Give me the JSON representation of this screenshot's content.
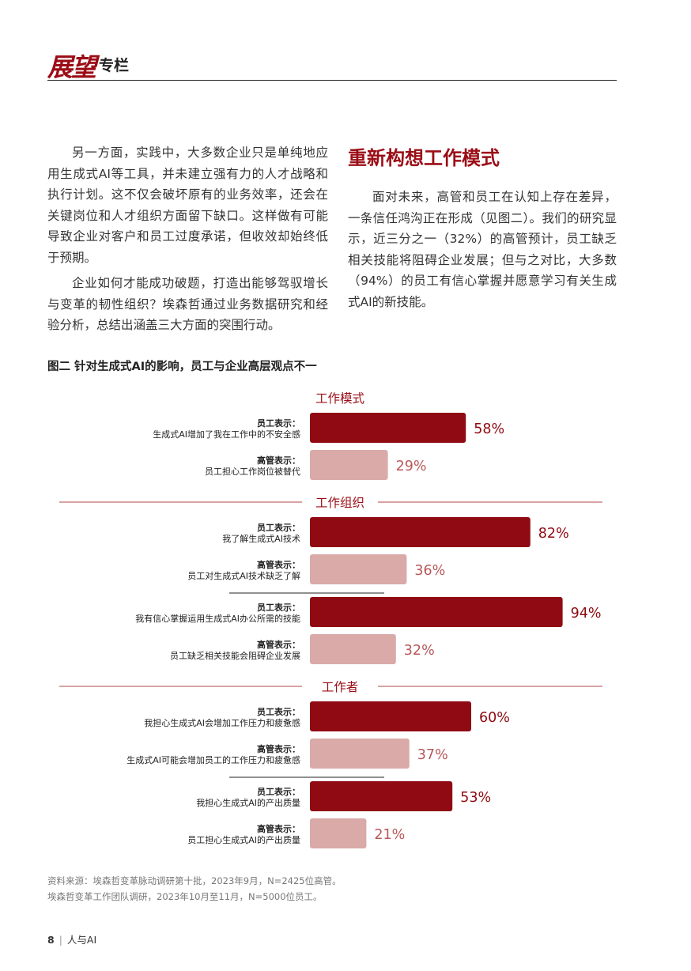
{
  "header": {
    "logo_text": "展望",
    "section": "专栏"
  },
  "left_column": {
    "paragraphs": [
      "另一方面，实践中，大多数企业只是单纯地应用生成式AI等工具，并未建立强有力的人才战略和执行计划。这不仅会破坏原有的业务效率，还会在关键岗位和人才组织方面留下缺口。这样做有可能导致企业对客户和员工过度承诺，但收效却始终低于预期。",
      "企业如何才能成功破题，打造出能够驾驭增长与变革的韧性组织？埃森哲通过业务数据研究和经验分析，总结出涵盖三大方面的突围行动。"
    ]
  },
  "right_column": {
    "heading": "重新构想工作模式",
    "paragraph": "面对未来，高管和员工在认知上存在差异，一条信任鸿沟正在形成（见图二）。我们的研究显示，近三分之一（32%）的高管预计，员工缺乏相关技能将阻碍企业发展；但与之对比，大多数（94%）的员工有信心掌握并愿意学习有关生成式AI的新技能。"
  },
  "figure": {
    "title": "图二  针对生成式AI的影响，员工与企业高层观点不一"
  },
  "chart_data": {
    "type": "bar",
    "orientation": "horizontal",
    "xlim": [
      0,
      100
    ],
    "unit": "%",
    "colors": {
      "employee": "#8f0a12",
      "executive": "#d9aaa8",
      "employee_label": "#8f0a12",
      "executive_label": "#b8585a"
    },
    "groups": [
      {
        "section": "工作模式",
        "pairs": [
          [
            {
              "role": "employee",
              "speaker": "员工表示：",
              "text": "生成式AI增加了我在工作中的不安全感",
              "value": 58
            },
            {
              "role": "executive",
              "speaker": "高管表示：",
              "text": "员工担心工作岗位被替代",
              "value": 29
            }
          ]
        ]
      },
      {
        "section": "工作组织",
        "pairs": [
          [
            {
              "role": "employee",
              "speaker": "员工表示：",
              "text": "我了解生成式AI技术",
              "value": 82
            },
            {
              "role": "executive",
              "speaker": "高管表示：",
              "text": "员工对生成式AI技术缺乏了解",
              "value": 36
            }
          ],
          [
            {
              "role": "employee",
              "speaker": "员工表示：",
              "text": "我有信心掌握运用生成式AI办公所需的技能",
              "value": 94
            },
            {
              "role": "executive",
              "speaker": "高管表示：",
              "text": "员工缺乏相关技能会阻碍企业发展",
              "value": 32
            }
          ]
        ]
      },
      {
        "section": "工作者",
        "pairs": [
          [
            {
              "role": "employee",
              "speaker": "员工表示：",
              "text": "我担心生成式AI会增加工作压力和疲惫感",
              "value": 60
            },
            {
              "role": "executive",
              "speaker": "高管表示：",
              "text": "生成式AI可能会增加员工的工作压力和疲惫感",
              "value": 37
            }
          ],
          [
            {
              "role": "employee",
              "speaker": "员工表示：",
              "text": "我担心生成式AI的产出质量",
              "value": 53
            },
            {
              "role": "executive",
              "speaker": "高管表示：",
              "text": "员工担心生成式AI的产出质量",
              "value": 21
            }
          ]
        ]
      }
    ]
  },
  "source": {
    "line1": "资料来源：埃森哲变革脉动调研第十批，2023年9月，N=2425位高管。",
    "line2": "埃森哲变革工作团队调研，2023年10月至11月，N=5000位员工。"
  },
  "footer": {
    "page": "8",
    "separator": "|",
    "section": "人与AI"
  }
}
